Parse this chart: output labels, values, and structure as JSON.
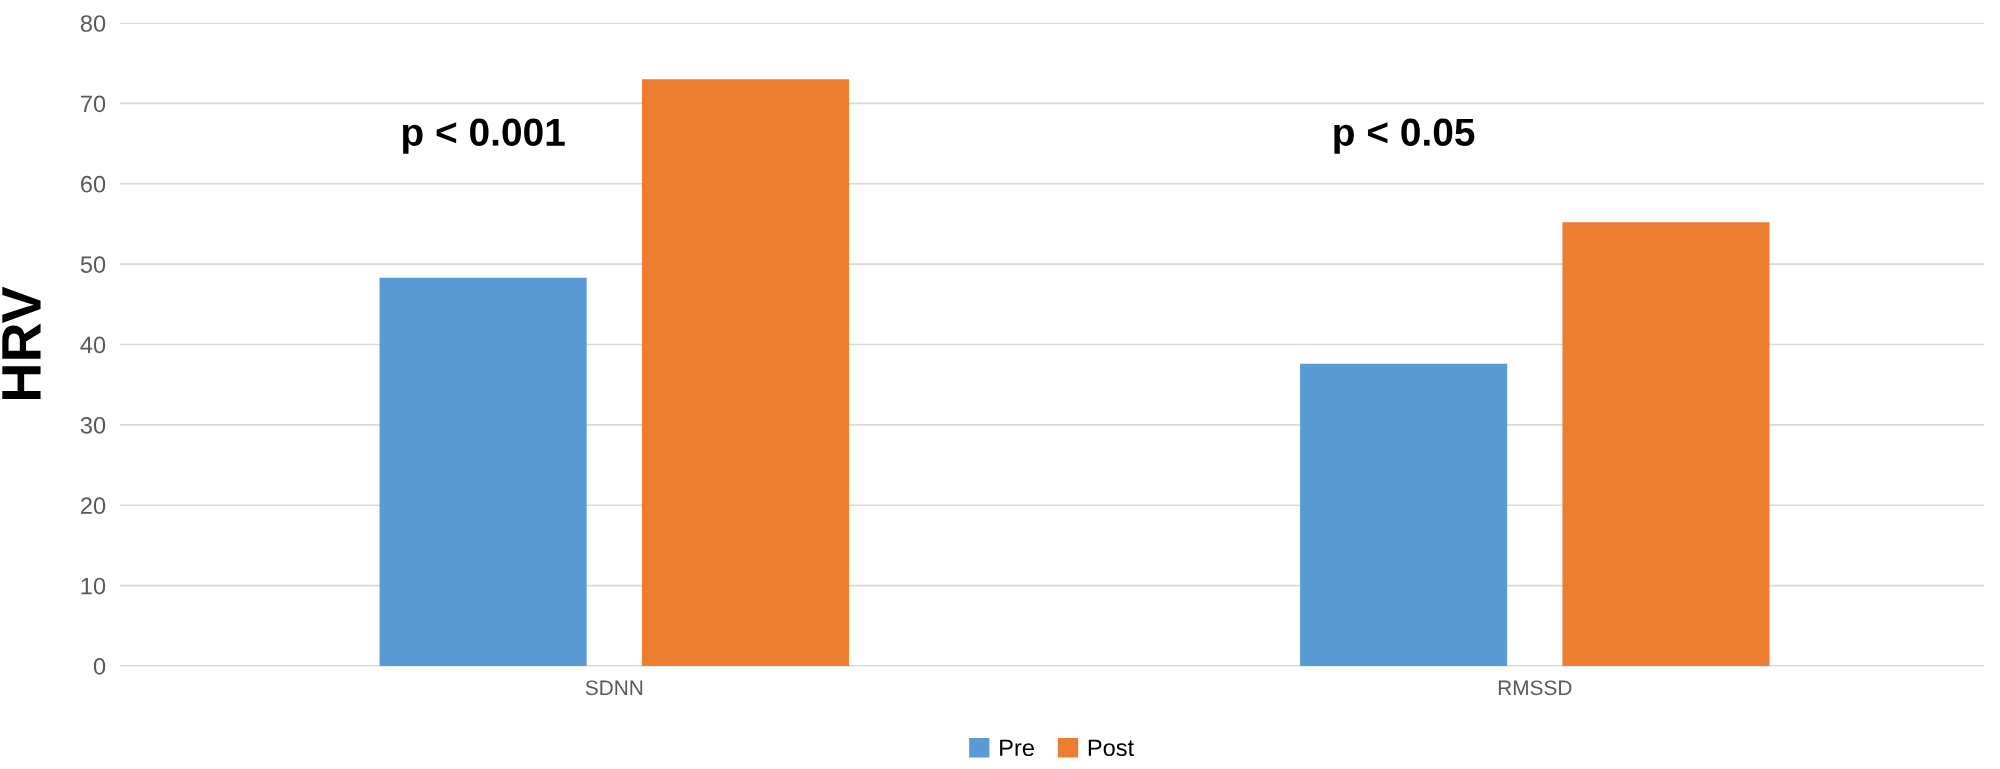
{
  "chart_data": {
    "type": "bar",
    "ylabel": "HRV",
    "categories": [
      "SDNN",
      "RMSSD"
    ],
    "series": [
      {
        "name": "Pre",
        "color": "#5b9bd5",
        "values": [
          48.3,
          37.6
        ]
      },
      {
        "name": "Post",
        "color": "#ed7d31",
        "values": [
          73.0,
          55.2
        ]
      }
    ],
    "ylim": [
      0,
      80
    ],
    "yticks": [
      0,
      10,
      20,
      30,
      40,
      50,
      60,
      70,
      80
    ],
    "grid": "y",
    "legend": "bottom",
    "annotations": [
      "p < 0.001",
      "p < 0.05"
    ]
  }
}
